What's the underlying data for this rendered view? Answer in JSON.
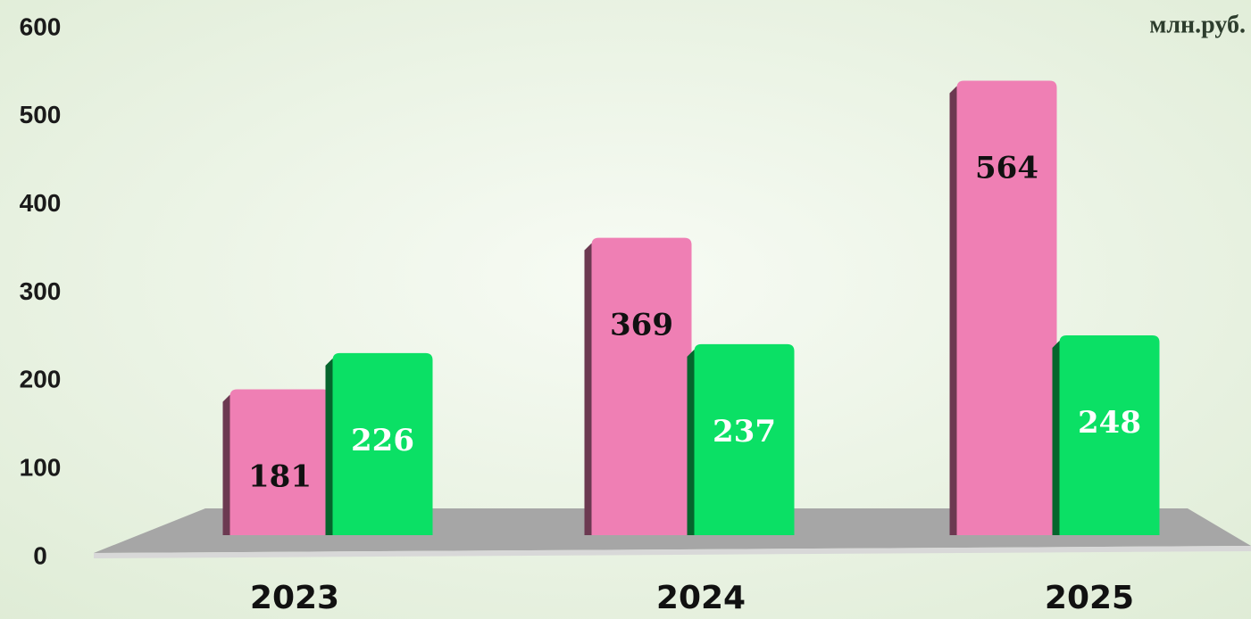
{
  "chart_data": {
    "type": "bar",
    "unit_label": "млн.руб.",
    "categories": [
      "2023",
      "2024",
      "2025"
    ],
    "series": [
      {
        "color": "#ef7fb4",
        "values": [
          181,
          369,
          564
        ]
      },
      {
        "color": "#0be065",
        "values": [
          226,
          237,
          248
        ]
      }
    ],
    "ylim": [
      0,
      600
    ],
    "yticks": [
      0,
      100,
      200,
      300,
      400,
      500,
      600
    ]
  }
}
